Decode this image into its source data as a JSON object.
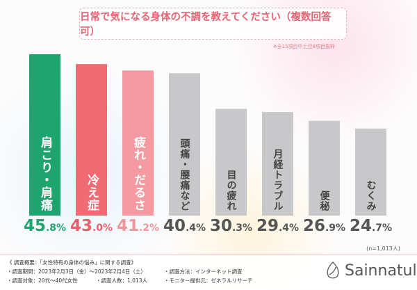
{
  "chart_data": {
    "type": "bar",
    "title": "日常で気になる身体の不調を教えてください（複数回答可）",
    "note": "※全15項目中上位8項目抜粋",
    "categories": [
      "肩こり・肩痛",
      "冷え症",
      "疲れ・だるさ",
      "頭痛・腰痛など",
      "目の疲れ",
      "月経トラブル",
      "便秘",
      "むくみ"
    ],
    "values": [
      45.8,
      43.0,
      41.2,
      40.4,
      30.3,
      29.4,
      26.9,
      24.7
    ],
    "value_labels": [
      [
        "45",
        ".8%"
      ],
      [
        "43",
        ".0%"
      ],
      [
        "41",
        ".2%"
      ],
      [
        "40",
        ".4%"
      ],
      [
        "30",
        ".3%"
      ],
      [
        "29",
        ".4%"
      ],
      [
        "26",
        ".9%"
      ],
      [
        "24",
        ".7%"
      ]
    ],
    "unit": "%",
    "colors": [
      "#1fa46f",
      "#f06b74",
      "#f49aa0",
      "#c8c8ca",
      "#c8c8ca",
      "#c8c8ca",
      "#c8c8ca",
      "#c8c8ca"
    ],
    "value_colors": [
      "#1fa46f",
      "#e8606c",
      "#f0959c",
      "#555555",
      "#555555",
      "#555555",
      "#555555",
      "#555555"
    ],
    "sample": "(n=1,013人)",
    "grid": false
  },
  "footer": {
    "heading": "《 調査概要：「女性特有の身体の悩み」に関する調査》",
    "period": "・調査期間：2023年2月3日（金）～2023年2月4日（土）",
    "target": "・調査対象：20代～40代女性",
    "count": "・調査人数：1,013人",
    "method": "・調査方法：インターネット調査",
    "provider": "・モニター提供元：ゼネラルリサーチ",
    "brand": "Sainnatul"
  }
}
